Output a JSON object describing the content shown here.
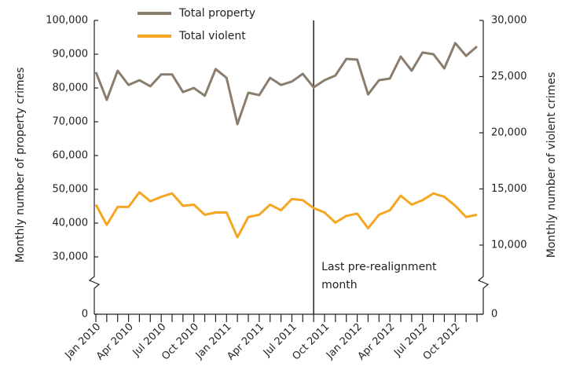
{
  "chart_data": {
    "type": "line",
    "ylabel": "Monthly number of property crimes",
    "y2label": "Monthly number of violent crimes",
    "categories": [
      "Jan 2010",
      null,
      null,
      "Apr 2010",
      null,
      null,
      "Jul 2010",
      null,
      null,
      "Oct 2010",
      null,
      null,
      "Jan 2011",
      null,
      null,
      "Apr 2011",
      null,
      null,
      "Jul 2011",
      null,
      null,
      "Oct 2011",
      null,
      null,
      "Jan 2012",
      null,
      null,
      "Apr 2012",
      null,
      null,
      "Jul 2012",
      null,
      null,
      "Oct 2012",
      null,
      null
    ],
    "series": [
      {
        "name": "Total property",
        "color": "#8b7d6e",
        "axis": "y",
        "values": [
          84700,
          76500,
          85100,
          80900,
          82300,
          80500,
          84000,
          84000,
          78800,
          80000,
          77700,
          85600,
          83000,
          69300,
          78600,
          77900,
          83000,
          80900,
          81900,
          84200,
          80200,
          82300,
          83700,
          88600,
          88400,
          78100,
          82300,
          82800,
          89300,
          85100,
          90500,
          90000,
          85800,
          93300,
          89500,
          92300
        ]
      },
      {
        "name": "Total violent",
        "color": "#f5a623",
        "axis": "y2",
        "values": [
          13600,
          11800,
          13400,
          13400,
          14700,
          13900,
          14300,
          14600,
          13500,
          13600,
          12700,
          12900,
          12900,
          10700,
          12500,
          12700,
          13600,
          13100,
          14100,
          14000,
          13300,
          12900,
          12000,
          12600,
          12800,
          11500,
          12700,
          13100,
          14400,
          13600,
          14000,
          14600,
          14300,
          13500,
          12500,
          12700
        ]
      }
    ],
    "ylim": [
      0,
      100000
    ],
    "ybreak": [
      0,
      30000
    ],
    "yticks": [
      0,
      {
        "value": 30000,
        "label": "30,000"
      },
      {
        "value": 40000,
        "label": "40,000"
      },
      {
        "value": 50000,
        "label": "50,000"
      },
      {
        "value": 60000,
        "label": "60,000"
      },
      {
        "value": 70000,
        "label": "70,000"
      },
      {
        "value": 80000,
        "label": "80,000"
      },
      {
        "value": 90000,
        "label": "90,000"
      },
      {
        "value": 100000,
        "label": "100,000"
      }
    ],
    "y2lim": [
      0,
      30000
    ],
    "y2break": [
      0,
      10000
    ],
    "y2ticks": [
      0,
      {
        "value": 10000,
        "label": "10,000"
      },
      {
        "value": 15000,
        "label": "15,000"
      },
      {
        "value": 20000,
        "label": "20,000"
      },
      {
        "value": 25000,
        "label": "25,000"
      },
      {
        "value": 30000,
        "label": "30,000"
      }
    ],
    "vline_index": 20,
    "annotation": [
      "Last pre-realignment",
      "month"
    ],
    "legend": "top-left"
  }
}
